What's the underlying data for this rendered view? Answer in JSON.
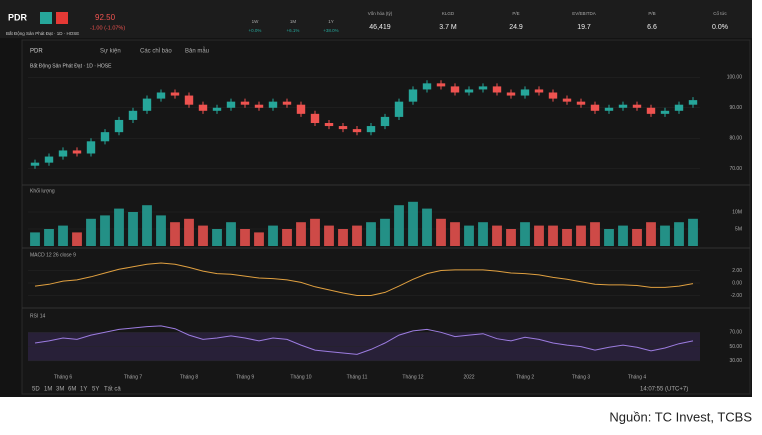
{
  "header": {
    "ticker": "PDR",
    "price": "92.50",
    "change": "-1.00 (-1.07%)",
    "company": "Bất Động Sản Phát Đạt · 1D · HOSE",
    "stats": [
      {
        "label": "Vốn hóa (tỷ)",
        "value": "46,419"
      },
      {
        "label": "KLGD",
        "value": "3.7 M"
      },
      {
        "label": "P/E",
        "value": "24.9"
      },
      {
        "label": "EV/EBITDA",
        "value": "19.7"
      },
      {
        "label": "P/B",
        "value": "6.6"
      },
      {
        "label": "Cổ tức",
        "value": "0.0%"
      }
    ],
    "changes": [
      {
        "label": "1W",
        "value": "+0.0%"
      },
      {
        "label": "1M",
        "value": "+6.1%"
      },
      {
        "label": "1Y",
        "value": "+38.0%"
      }
    ]
  },
  "toolbar": {
    "symbol": "PDR",
    "items": [
      "Sự kiện",
      "Các chỉ báo",
      "Bản mẫu"
    ]
  },
  "chart_data": [
    {
      "type": "candlestick",
      "title": "Bất Động Sản Phát Đạt · 1D · HOSE",
      "up_color": "#26a69a",
      "down_color": "#ef5350",
      "categories": [
        null,
        null,
        "Tháng 6",
        null,
        null,
        null,
        null,
        "Tháng 7",
        null,
        null,
        null,
        "Tháng 8",
        null,
        null,
        null,
        "Tháng 9",
        null,
        null,
        null,
        "Tháng 10",
        null,
        null,
        null,
        "Tháng 11",
        null,
        null,
        null,
        "Tháng 12",
        null,
        null,
        null,
        "2022",
        null,
        null,
        null,
        "Tháng 2",
        null,
        null,
        null,
        "Tháng 3",
        null,
        null,
        null,
        "Tháng 4",
        null,
        null,
        null,
        null
      ],
      "open": [
        71,
        72,
        74,
        76,
        75,
        79,
        82,
        86,
        89,
        93,
        95,
        94,
        91,
        89,
        90,
        92,
        91,
        90,
        92,
        91,
        88,
        85,
        84,
        83,
        82,
        84,
        87,
        92,
        96,
        98,
        97,
        95,
        96,
        97,
        95,
        94,
        96,
        95,
        93,
        92,
        91,
        89,
        90,
        91,
        90,
        88,
        89,
        91
      ],
      "high": [
        73,
        75,
        77,
        77,
        80,
        83,
        87,
        90,
        94,
        96,
        96,
        95,
        92,
        91,
        93,
        93,
        92,
        93,
        93,
        92,
        89,
        86,
        85,
        84,
        85,
        88,
        93,
        97,
        99,
        99,
        98,
        97,
        98,
        98,
        96,
        97,
        97,
        96,
        94,
        93,
        92,
        91,
        92,
        92,
        91,
        90,
        92,
        93.5
      ],
      "low": [
        70,
        71,
        73,
        74,
        74,
        78,
        81,
        85,
        88,
        92,
        93,
        90,
        88,
        88,
        89,
        90,
        89,
        89,
        90,
        87,
        84,
        83,
        82,
        81,
        81,
        83,
        86,
        91,
        95,
        96,
        94,
        94,
        95,
        94,
        93,
        93,
        94,
        92,
        91,
        90,
        88,
        88,
        89,
        89,
        87,
        87,
        88,
        90
      ],
      "close": [
        72,
        74,
        76,
        75,
        79,
        82,
        86,
        89,
        93,
        95,
        94,
        91,
        89,
        90,
        92,
        91,
        90,
        92,
        91,
        88,
        85,
        84,
        83,
        82,
        84,
        87,
        92,
        96,
        98,
        97,
        95,
        96,
        97,
        95,
        94,
        96,
        95,
        93,
        92,
        91,
        89,
        90,
        91,
        90,
        88,
        89,
        91,
        92.5
      ],
      "ylim": [
        65,
        105
      ],
      "yticks": [
        {
          "value": 70,
          "label": "70.00"
        },
        {
          "value": 80,
          "label": "80.00"
        },
        {
          "value": 90,
          "label": "90.00"
        },
        {
          "value": 100,
          "label": "100.00"
        }
      ]
    },
    {
      "type": "bar",
      "title": "Khối lượng",
      "values": [
        4,
        5,
        6,
        4,
        8,
        9,
        11,
        10,
        12,
        9,
        7,
        8,
        6,
        5,
        7,
        5,
        4,
        6,
        5,
        7,
        8,
        6,
        5,
        6,
        7,
        8,
        12,
        13,
        11,
        8,
        7,
        6,
        7,
        6,
        5,
        7,
        6,
        6,
        5,
        6,
        7,
        5,
        6,
        5,
        7,
        6,
        7,
        8
      ],
      "ylim": [
        0,
        15
      ],
      "yticks": [
        {
          "value": 5,
          "label": "5M"
        },
        {
          "value": 10,
          "label": "10M"
        }
      ]
    },
    {
      "type": "line",
      "title": "MACD 12 26 close 9",
      "color": "#e0a040",
      "values": [
        -0.5,
        -0.2,
        0.3,
        0.5,
        1,
        1.6,
        2.2,
        2.6,
        3,
        3.2,
        3,
        2.5,
        1.9,
        1.5,
        1.4,
        1.1,
        0.8,
        0.7,
        0.5,
        0.1,
        -0.6,
        -1.1,
        -1.6,
        -2,
        -2,
        -1.5,
        -0.5,
        0.6,
        1.5,
        2,
        2.1,
        2.1,
        2.1,
        1.9,
        1.6,
        1.5,
        1.3,
        0.9,
        0.6,
        0.2,
        -0.2,
        -0.3,
        -0.3,
        -0.4,
        -0.7,
        -0.7,
        -0.5,
        -0.1
      ],
      "ylim": [
        -4,
        4
      ],
      "yticks": [
        {
          "value": -2,
          "label": "-2.00"
        },
        {
          "value": 0,
          "label": "0.00"
        },
        {
          "value": 2,
          "label": "2.00"
        }
      ]
    },
    {
      "type": "line",
      "title": "RSI 14",
      "color": "#9c7ce0",
      "band": [
        30,
        70
      ],
      "values": [
        55,
        58,
        62,
        60,
        66,
        70,
        74,
        76,
        78,
        79,
        75,
        66,
        60,
        62,
        65,
        62,
        58,
        62,
        60,
        52,
        45,
        43,
        41,
        39,
        46,
        55,
        66,
        72,
        74,
        70,
        64,
        66,
        68,
        61,
        58,
        63,
        60,
        55,
        52,
        50,
        45,
        49,
        52,
        49,
        44,
        48,
        54,
        58
      ],
      "ylim": [
        20,
        90
      ],
      "yticks": [
        {
          "value": 30,
          "label": "30.00"
        },
        {
          "value": 50,
          "label": "50.00"
        },
        {
          "value": 70,
          "label": "70.00"
        }
      ]
    }
  ],
  "footer": {
    "ranges": [
      "5D",
      "1M",
      "3M",
      "6M",
      "1Y",
      "5Y",
      "Tất cả"
    ],
    "time": "14:07:55 (UTC+7)"
  },
  "source": "Nguồn: TC Invest, TCBS"
}
